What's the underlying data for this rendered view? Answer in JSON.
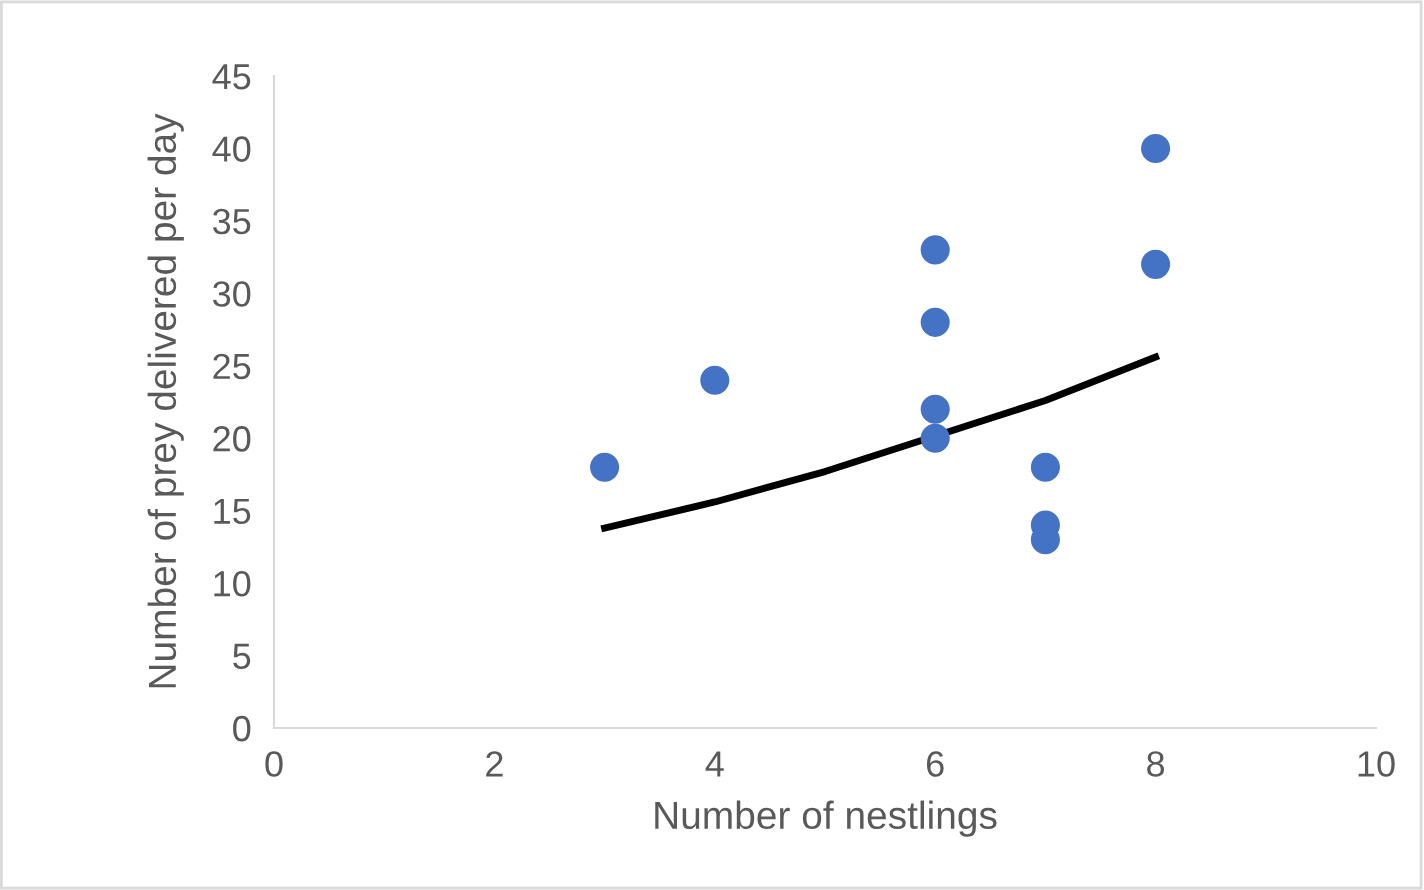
{
  "chart_data": {
    "type": "scatter",
    "xlabel": "Number of nestlings",
    "ylabel": "Number of prey delivered per day",
    "xlim": [
      0,
      10
    ],
    "xticks": [
      0,
      2,
      4,
      6,
      8,
      10
    ],
    "ylim": [
      0,
      45
    ],
    "yticks": [
      0,
      5,
      10,
      15,
      20,
      25,
      30,
      35,
      40,
      45
    ],
    "grid": false,
    "legend": false,
    "series": [
      {
        "color": "#4472c4",
        "marker": "circle",
        "x": [
          3,
          4,
          6,
          6,
          6,
          6,
          7,
          7,
          7,
          8,
          8
        ],
        "values": [
          18,
          24,
          33,
          28,
          22,
          20,
          18,
          14,
          13,
          40,
          32
        ]
      },
      {
        "type": "line",
        "color": "#000000",
        "line_style": "solid",
        "x": [
          3,
          4,
          5,
          7,
          8
        ],
        "values": [
          13.8,
          15.6,
          17.7,
          22.6,
          25.6
        ]
      }
    ]
  }
}
